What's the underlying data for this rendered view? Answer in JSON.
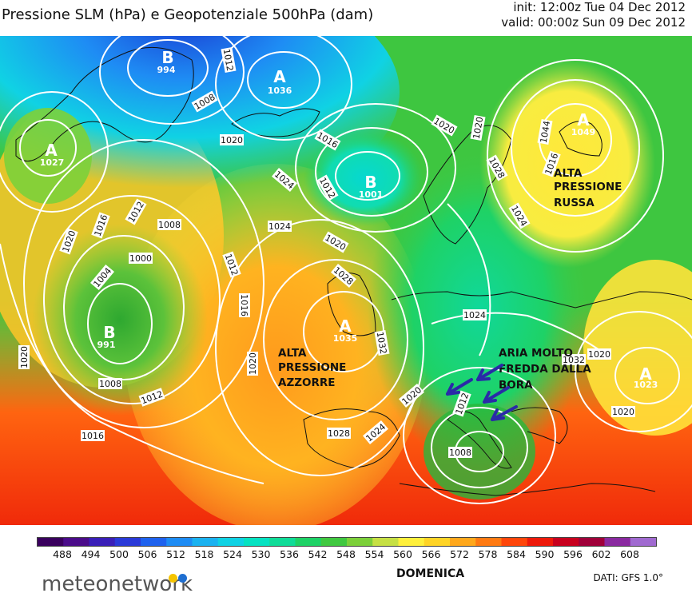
{
  "header": {
    "title": "Pressione SLM (hPa) e Geopotenziale 500hPa (dam)",
    "init": "init: 12:00z Tue 04 Dec 2012",
    "valid": "valid: 00:00z Sun 09 Dec 2012"
  },
  "centers": [
    {
      "type": "B",
      "value": "994"
    },
    {
      "type": "A",
      "value": "1036"
    },
    {
      "type": "A",
      "value": "1027"
    },
    {
      "type": "B",
      "value": "1001"
    },
    {
      "type": "A",
      "value": "1049"
    },
    {
      "type": "B",
      "value": "991"
    },
    {
      "type": "A",
      "value": "1035"
    },
    {
      "type": "A",
      "value": "1023"
    }
  ],
  "isobar_labels": [
    "1012",
    "1008",
    "1020",
    "1024",
    "1016",
    "1012",
    "1020",
    "1016",
    "1012",
    "1008",
    "1000",
    "1004",
    "1012",
    "1016",
    "1024",
    "1020",
    "1028",
    "1032",
    "1020",
    "1008",
    "1012",
    "1016",
    "1020",
    "1028",
    "1024",
    "1020",
    "1024",
    "1020",
    "1012",
    "1008",
    "1020",
    "1020",
    "1032",
    "1044",
    "1028",
    "1024",
    "1020",
    "1016"
  ],
  "annotations": {
    "russia": [
      "ALTA",
      "PRESSIONE",
      "RUSSA"
    ],
    "azores": [
      "ALTA",
      "PRESSIONE",
      "AZZORRE"
    ],
    "bora": [
      "ARIA MOLTO",
      "FREDDA DALLA",
      "BORA"
    ]
  },
  "colorbar": {
    "ticks": [
      "488",
      "494",
      "500",
      "506",
      "512",
      "518",
      "524",
      "530",
      "536",
      "542",
      "548",
      "554",
      "560",
      "566",
      "572",
      "578",
      "584",
      "590",
      "596",
      "602",
      "608"
    ],
    "colors": [
      "#3a005e",
      "#4b0c8a",
      "#3a1fb8",
      "#2a3ad8",
      "#1f62ee",
      "#1e8cf4",
      "#1bb2f0",
      "#10d2e4",
      "#06e2c2",
      "#10dc98",
      "#1ed266",
      "#40c840",
      "#7cd03a",
      "#c6e044",
      "#fff03c",
      "#ffd426",
      "#ffa81c",
      "#ff7a12",
      "#ff460a",
      "#ee1a0a",
      "#c8001e",
      "#a0003a",
      "#8a2aa0",
      "#a06ad0"
    ]
  },
  "footer": {
    "day": "DOMENICA",
    "source": "DATI:  GFS  1.0°",
    "brand": "meteonetwork",
    "brand_colors": [
      "#f5c400",
      "#1f6fd1"
    ]
  }
}
